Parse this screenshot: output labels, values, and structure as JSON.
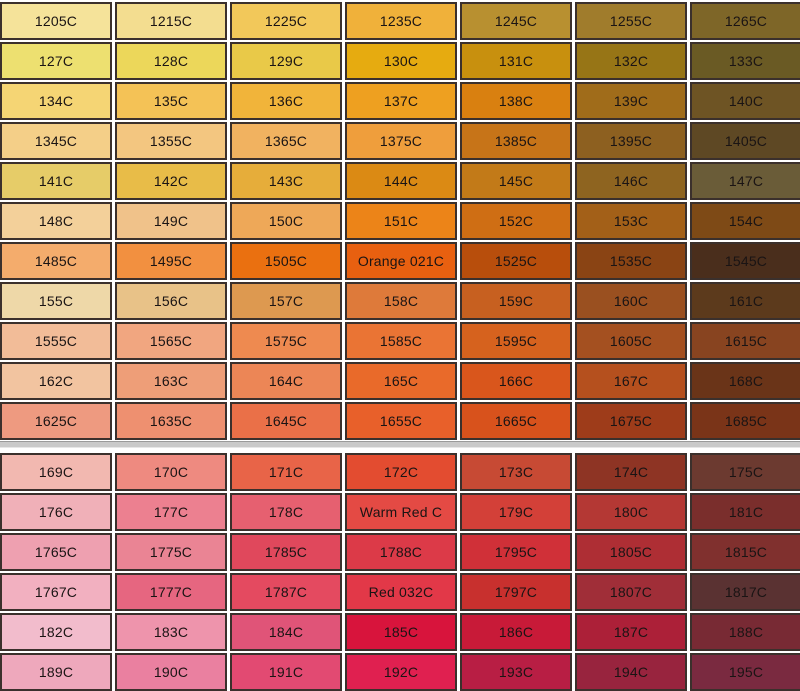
{
  "sections": [
    {
      "rows": [
        [
          [
            "1205C",
            "#f5e39a"
          ],
          [
            "1215C",
            "#f3dd90"
          ],
          [
            "1225C",
            "#f2c85a"
          ],
          [
            "1235C",
            "#f0b13a"
          ],
          [
            "1245C",
            "#b89030"
          ],
          [
            "1255C",
            "#a07c2c"
          ],
          [
            "1265C",
            "#7e6628"
          ]
        ],
        [
          [
            "127C",
            "#ede070"
          ],
          [
            "128C",
            "#ecd75a"
          ],
          [
            "129C",
            "#e9c948"
          ],
          [
            "130C",
            "#e6ab10"
          ],
          [
            "131C",
            "#c8900e"
          ],
          [
            "132C",
            "#977516"
          ],
          [
            "133C",
            "#6a5a24"
          ]
        ],
        [
          [
            "134C",
            "#f5d574"
          ],
          [
            "135C",
            "#f4c256"
          ],
          [
            "136C",
            "#f1b43a"
          ],
          [
            "137C",
            "#eea020"
          ],
          [
            "138C",
            "#d98010"
          ],
          [
            "139C",
            "#a06c1a"
          ],
          [
            "140C",
            "#6e5424"
          ]
        ],
        [
          [
            "1345C",
            "#f4cf88"
          ],
          [
            "1355C",
            "#f3c680"
          ],
          [
            "1365C",
            "#f1b260"
          ],
          [
            "1375C",
            "#ef9e3c"
          ],
          [
            "1385C",
            "#c77418"
          ],
          [
            "1395C",
            "#8d6020"
          ],
          [
            "1405C",
            "#5e4824"
          ]
        ],
        [
          [
            "141C",
            "#e6cc68"
          ],
          [
            "142C",
            "#e8bc48"
          ],
          [
            "143C",
            "#e6ad3a"
          ],
          [
            "144C",
            "#db8a14"
          ],
          [
            "145C",
            "#c27a18"
          ],
          [
            "146C",
            "#8e6420"
          ],
          [
            "147C",
            "#6a5c38"
          ]
        ],
        [
          [
            "148C",
            "#f3d09a"
          ],
          [
            "149C",
            "#f0c28a"
          ],
          [
            "150C",
            "#eea858"
          ],
          [
            "151C",
            "#ec8418"
          ],
          [
            "152C",
            "#cf6e14"
          ],
          [
            "153C",
            "#a36018"
          ],
          [
            "154C",
            "#7e4a16"
          ]
        ],
        [
          [
            "1485C",
            "#f4ac6c"
          ],
          [
            "1495C",
            "#f29040"
          ],
          [
            "1505C",
            "#ea7010"
          ],
          [
            "Orange 021C",
            "#e86010"
          ],
          [
            "1525C",
            "#b84e0c"
          ],
          [
            "1535C",
            "#8a4414"
          ],
          [
            "1545C",
            "#4a2e1c"
          ]
        ],
        [
          [
            "155C",
            "#eed8a8"
          ],
          [
            "156C",
            "#e8c288"
          ],
          [
            "157C",
            "#dd9950"
          ],
          [
            "158C",
            "#de7a3a"
          ],
          [
            "159C",
            "#c76020"
          ],
          [
            "160C",
            "#9a5020"
          ],
          [
            "161C",
            "#5c3a1c"
          ]
        ],
        [
          [
            "1555C",
            "#f2bc98"
          ],
          [
            "1565C",
            "#f1a680"
          ],
          [
            "1575C",
            "#ee8a50"
          ],
          [
            "1585C",
            "#ea7434"
          ],
          [
            "1595C",
            "#d6621e"
          ],
          [
            "1605C",
            "#a45020"
          ],
          [
            "1615C",
            "#884420"
          ]
        ],
        [
          [
            "162C",
            "#f2c4a0"
          ],
          [
            "163C",
            "#ee9e78"
          ],
          [
            "164C",
            "#ec8656"
          ],
          [
            "165C",
            "#e96a2a"
          ],
          [
            "166C",
            "#d9561c"
          ],
          [
            "167C",
            "#b5501e"
          ],
          [
            "168C",
            "#6a3418"
          ]
        ],
        [
          [
            "1625C",
            "#ee9a80"
          ],
          [
            "1635C",
            "#ee9070"
          ],
          [
            "1645C",
            "#ea7048"
          ],
          [
            "1655C",
            "#e8602a"
          ],
          [
            "1665C",
            "#d8521c"
          ],
          [
            "1675C",
            "#9e3c1a"
          ],
          [
            "1685C",
            "#7a3418"
          ]
        ]
      ]
    },
    {
      "rows": [
        [
          [
            "169C",
            "#f2b8b0"
          ],
          [
            "170C",
            "#ee8a80"
          ],
          [
            "171C",
            "#e86448"
          ],
          [
            "172C",
            "#e34c30"
          ],
          [
            "173C",
            "#c74a34"
          ],
          [
            "174C",
            "#8e3424"
          ],
          [
            "175C",
            "#6c3a30"
          ]
        ],
        [
          [
            "176C",
            "#f0b0b8"
          ],
          [
            "177C",
            "#ec8090"
          ],
          [
            "178C",
            "#e66070"
          ],
          [
            "Warm Red C",
            "#e44a44"
          ],
          [
            "179C",
            "#d34038"
          ],
          [
            "180C",
            "#b43834"
          ],
          [
            "181C",
            "#7a2e2c"
          ]
        ],
        [
          [
            "1765C",
            "#eea0b0"
          ],
          [
            "1775C",
            "#ea8494"
          ],
          [
            "1785C",
            "#e0485c"
          ],
          [
            "1788C",
            "#dc3a48"
          ],
          [
            "1795C",
            "#d03038"
          ],
          [
            "1805C",
            "#ae2e34"
          ],
          [
            "1815C",
            "#80302e"
          ]
        ],
        [
          [
            "1767C",
            "#f2b0c0"
          ],
          [
            "1777C",
            "#e66680"
          ],
          [
            "1787C",
            "#e44a60"
          ],
          [
            "Red 032C",
            "#e23848"
          ],
          [
            "1797C",
            "#c8302e"
          ],
          [
            "1807C",
            "#a02e38"
          ],
          [
            "1817C",
            "#5a3232"
          ]
        ],
        [
          [
            "182C",
            "#f2bccc"
          ],
          [
            "183C",
            "#ee94ac"
          ],
          [
            "184C",
            "#e05478"
          ],
          [
            "185C",
            "#d8143c"
          ],
          [
            "186C",
            "#c81a38"
          ],
          [
            "187C",
            "#ac2038"
          ],
          [
            "188C",
            "#782a34"
          ]
        ],
        [
          [
            "189C",
            "#eea8bc"
          ],
          [
            "190C",
            "#ea80a0"
          ],
          [
            "191C",
            "#e24a72"
          ],
          [
            "192C",
            "#e02050"
          ],
          [
            "193C",
            "#b81e44"
          ],
          [
            "194C",
            "#98243e"
          ],
          [
            "195C",
            "#7a2a40"
          ]
        ]
      ]
    }
  ]
}
